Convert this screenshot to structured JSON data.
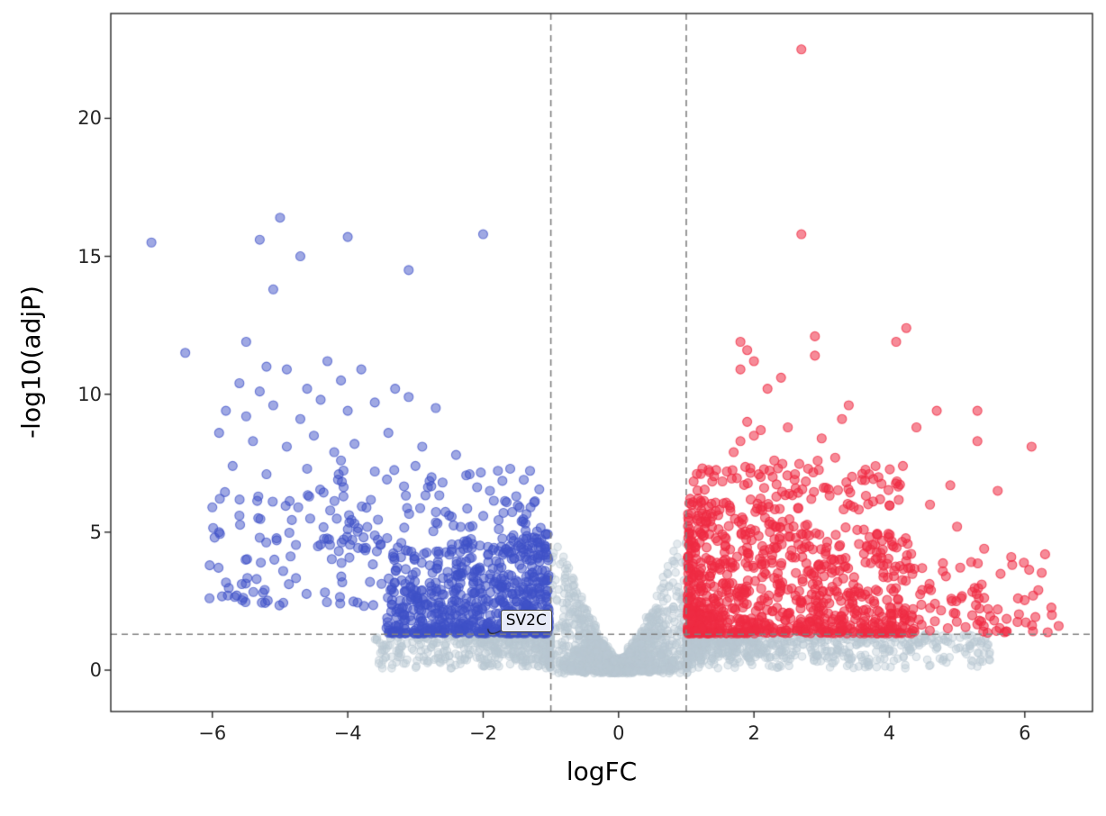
{
  "chart_data": {
    "type": "scatter",
    "title": "",
    "xlabel": "logFC",
    "ylabel": "-log10(adjP)",
    "xlim": [
      -7.5,
      7.0
    ],
    "ylim": [
      -1.5,
      23.8
    ],
    "xtick_values": [
      -6,
      -4,
      -2,
      0,
      2,
      4,
      6
    ],
    "xtick_labels": [
      "−6",
      "−4",
      "−2",
      "0",
      "2",
      "4",
      "6"
    ],
    "ytick_values": [
      0,
      5,
      10,
      15,
      20
    ],
    "ytick_labels": [
      "0",
      "5",
      "10",
      "15",
      "20"
    ],
    "grid": false,
    "legend": "none",
    "background": "#ffffff",
    "axis_color": "#262626",
    "threshold_lines": {
      "vertical_x": [
        -1,
        1
      ],
      "horizontal_y": 1.3,
      "color": "#808080",
      "style": "dashed"
    },
    "annotation": {
      "label": "SV2C",
      "x": -1.93,
      "y": 1.5,
      "label_x": -1.77,
      "label_y": 1.75
    },
    "seed": 1337,
    "draw_order": [
      1,
      0,
      2
    ],
    "series": [
      {
        "name": "down-regulated",
        "color": "#3f51c8",
        "opacity": 0.5,
        "radius": 5,
        "clusters": [
          {
            "kind": "blueBlob",
            "count": 680
          },
          {
            "kind": "blueMid",
            "count": 110
          },
          {
            "kind": "blueLeft",
            "count": 85
          }
        ],
        "points": [
          [
            -6.9,
            15.5
          ],
          [
            -6.4,
            11.5
          ],
          [
            -5.3,
            15.6
          ],
          [
            -5.0,
            16.4
          ],
          [
            -4.7,
            15.0
          ],
          [
            -4.0,
            15.7
          ],
          [
            -2.0,
            15.8
          ],
          [
            -3.1,
            14.5
          ],
          [
            -5.1,
            13.8
          ],
          [
            -5.5,
            11.9
          ],
          [
            -5.2,
            11.0
          ],
          [
            -5.6,
            10.4
          ],
          [
            -5.3,
            10.1
          ],
          [
            -4.9,
            10.9
          ],
          [
            -4.6,
            10.2
          ],
          [
            -4.3,
            11.2
          ],
          [
            -4.1,
            10.5
          ],
          [
            -3.8,
            10.9
          ],
          [
            -3.6,
            9.7
          ],
          [
            -3.3,
            10.2
          ],
          [
            -5.8,
            9.4
          ],
          [
            -5.5,
            9.2
          ],
          [
            -5.1,
            9.6
          ],
          [
            -4.7,
            9.1
          ],
          [
            -4.4,
            9.8
          ],
          [
            -4.0,
            9.4
          ],
          [
            -3.1,
            9.9
          ],
          [
            -2.7,
            9.5
          ],
          [
            -5.9,
            8.6
          ],
          [
            -5.4,
            8.3
          ],
          [
            -4.9,
            8.1
          ],
          [
            -4.5,
            8.5
          ],
          [
            -4.2,
            7.9
          ],
          [
            -3.9,
            8.2
          ],
          [
            -3.4,
            8.6
          ],
          [
            -2.9,
            8.1
          ],
          [
            -2.4,
            7.8
          ],
          [
            -5.7,
            7.4
          ],
          [
            -5.2,
            7.1
          ],
          [
            -4.6,
            7.3
          ],
          [
            -4.1,
            7.6
          ],
          [
            -3.6,
            7.2
          ],
          [
            -3.0,
            7.4
          ],
          [
            -2.2,
            7.1
          ],
          [
            -1.6,
            7.3
          ],
          [
            -6.0,
            5.9
          ],
          [
            -5.6,
            5.6
          ],
          [
            -2.6,
            6.8
          ],
          [
            -1.9,
            6.5
          ],
          [
            -1.4,
            6.9
          ],
          [
            -5.9,
            5.0
          ],
          [
            -5.3,
            4.8
          ],
          [
            -1.3,
            5.9
          ],
          [
            -1.7,
            5.7
          ]
        ]
      },
      {
        "name": "not-significant",
        "color": "#b9c7d1",
        "opacity": 0.38,
        "radius": 4.2,
        "clusters": [
          {
            "kind": "wedge",
            "count": 1500
          },
          {
            "kind": "band",
            "count": 1150
          }
        ],
        "points": []
      },
      {
        "name": "up-regulated",
        "color": "#ef2b43",
        "opacity": 0.55,
        "radius": 5,
        "clusters": [
          {
            "kind": "redBlob",
            "count": 840
          },
          {
            "kind": "redMid",
            "count": 100
          },
          {
            "kind": "redRight",
            "count": 70
          }
        ],
        "points": [
          [
            2.7,
            22.5
          ],
          [
            2.7,
            15.8
          ],
          [
            4.25,
            12.4
          ],
          [
            2.9,
            12.1
          ],
          [
            1.8,
            11.9
          ],
          [
            2.0,
            11.2
          ],
          [
            4.1,
            11.9
          ],
          [
            2.9,
            11.4
          ],
          [
            1.9,
            11.6
          ],
          [
            2.4,
            10.6
          ],
          [
            1.8,
            10.9
          ],
          [
            2.2,
            10.2
          ],
          [
            3.4,
            9.6
          ],
          [
            3.3,
            9.1
          ],
          [
            4.7,
            9.4
          ],
          [
            5.3,
            9.4
          ],
          [
            1.9,
            9.0
          ],
          [
            2.1,
            8.7
          ],
          [
            1.8,
            8.3
          ],
          [
            2.0,
            8.5
          ],
          [
            2.5,
            8.8
          ],
          [
            3.0,
            8.4
          ],
          [
            5.3,
            8.3
          ],
          [
            6.1,
            8.1
          ],
          [
            4.4,
            8.8
          ],
          [
            1.7,
            7.9
          ],
          [
            2.3,
            7.6
          ],
          [
            2.8,
            7.3
          ],
          [
            3.2,
            7.7
          ],
          [
            3.7,
            7.1
          ],
          [
            4.2,
            7.4
          ],
          [
            1.6,
            7.2
          ],
          [
            2.1,
            7.0
          ],
          [
            2.6,
            6.9
          ],
          [
            4.9,
            6.7
          ],
          [
            6.3,
            4.2
          ],
          [
            6.4,
            2.0
          ],
          [
            5.9,
            2.6
          ],
          [
            5.6,
            2.2
          ],
          [
            6.5,
            1.6
          ],
          [
            6.2,
            2.9
          ],
          [
            5.8,
            4.1
          ],
          [
            5.4,
            4.4
          ],
          [
            5.0,
            5.2
          ],
          [
            4.6,
            6.0
          ],
          [
            5.6,
            6.5
          ]
        ]
      }
    ]
  }
}
